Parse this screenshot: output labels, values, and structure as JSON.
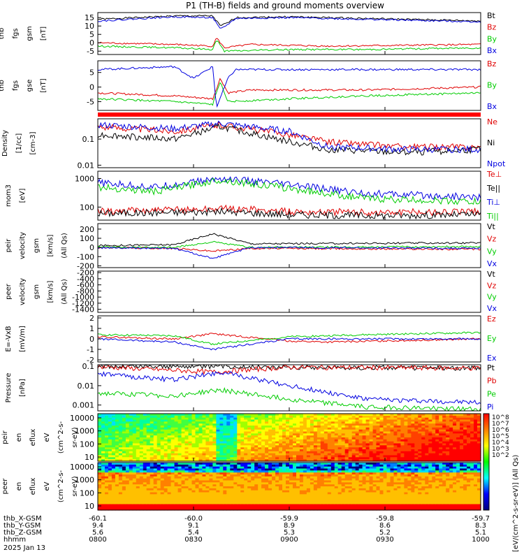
{
  "title": "P1 (TH-B) fields and ground moments overview",
  "colors": {
    "black": "#000000",
    "red": "#e00000",
    "green": "#00cc00",
    "blue": "#0000e0"
  },
  "chart_data": [
    {
      "type": "line",
      "id": "p1",
      "ylabel": [
        "thb",
        "fgs",
        "gsm",
        "[nT]"
      ],
      "yticks": [
        15,
        10,
        5,
        0,
        -5
      ],
      "ylim": [
        -7,
        18
      ],
      "series": [
        {
          "name": "Bt",
          "color": "black",
          "points": [
            [
              0,
              14
            ],
            [
              0.2,
              16
            ],
            [
              0.3,
              16
            ],
            [
              0.32,
              10
            ],
            [
              0.34,
              12
            ],
            [
              0.36,
              15
            ],
            [
              0.5,
              15.5
            ],
            [
              1,
              13
            ]
          ]
        },
        {
          "name": "Bz",
          "color": "red",
          "points": [
            [
              0,
              0
            ],
            [
              0.2,
              -1
            ],
            [
              0.3,
              -2
            ],
            [
              0.31,
              3
            ],
            [
              0.33,
              -3
            ],
            [
              0.4,
              -1
            ],
            [
              0.6,
              -2
            ],
            [
              1,
              -1
            ]
          ]
        },
        {
          "name": "By",
          "color": "green",
          "points": [
            [
              0,
              -2
            ],
            [
              0.2,
              -3
            ],
            [
              0.3,
              -4
            ],
            [
              0.31,
              2
            ],
            [
              0.33,
              -5
            ],
            [
              0.5,
              -4
            ],
            [
              0.7,
              -4
            ],
            [
              1,
              -3
            ]
          ]
        },
        {
          "name": "Bx",
          "color": "blue",
          "points": [
            [
              0,
              13
            ],
            [
              0.2,
              15.5
            ],
            [
              0.3,
              15
            ],
            [
              0.32,
              8
            ],
            [
              0.34,
              11
            ],
            [
              0.36,
              14.5
            ],
            [
              0.5,
              15
            ],
            [
              1,
              12.5
            ]
          ]
        }
      ]
    },
    {
      "type": "line",
      "id": "p2",
      "ylabel": [
        "thb",
        "fgs",
        "gse",
        "[nT]"
      ],
      "yticks": [
        5,
        0,
        -5
      ],
      "ylim": [
        -8,
        9
      ],
      "series": [
        {
          "name": "Bz",
          "color": "red",
          "points": [
            [
              0,
              -2
            ],
            [
              0.2,
              -3
            ],
            [
              0.3,
              -4
            ],
            [
              0.32,
              3
            ],
            [
              0.34,
              -2
            ],
            [
              0.4,
              -1
            ],
            [
              0.7,
              -1
            ],
            [
              1,
              0
            ]
          ]
        },
        {
          "name": "By",
          "color": "green",
          "points": [
            [
              0,
              -4
            ],
            [
              0.2,
              -5
            ],
            [
              0.3,
              -6
            ],
            [
              0.32,
              2
            ],
            [
              0.34,
              -5
            ],
            [
              0.5,
              -4
            ],
            [
              0.7,
              -3
            ],
            [
              1,
              -2
            ]
          ]
        },
        {
          "name": "Bx",
          "color": "blue",
          "points": [
            [
              0,
              6
            ],
            [
              0.2,
              7
            ],
            [
              0.25,
              3
            ],
            [
              0.3,
              7
            ],
            [
              0.31,
              -7
            ],
            [
              0.34,
              3
            ],
            [
              0.36,
              6
            ],
            [
              0.5,
              6
            ],
            [
              1,
              6
            ]
          ]
        }
      ]
    },
    {
      "type": "line",
      "id": "p3",
      "log": true,
      "ylabel": [
        "Density",
        "[1/cc]",
        "[cm-3]"
      ],
      "yticks": [
        0.1,
        0.01
      ],
      "ylim": [
        0.008,
        0.6
      ],
      "series": [
        {
          "name": "Ne",
          "color": "red",
          "points": [
            [
              0,
              0.3
            ],
            [
              0.2,
              0.2
            ],
            [
              0.32,
              0.35
            ],
            [
              0.5,
              0.15
            ],
            [
              0.6,
              0.08
            ],
            [
              0.8,
              0.05
            ],
            [
              1,
              0.05
            ]
          ]
        },
        {
          "name": "Ni",
          "color": "black",
          "points": [
            [
              0,
              0.15
            ],
            [
              0.2,
              0.1
            ],
            [
              0.32,
              0.3
            ],
            [
              0.5,
              0.08
            ],
            [
              0.6,
              0.04
            ],
            [
              0.8,
              0.03
            ],
            [
              1,
              0.04
            ]
          ]
        },
        {
          "name": "Npot",
          "color": "blue",
          "points": [
            [
              0,
              0.35
            ],
            [
              0.2,
              0.25
            ],
            [
              0.32,
              0.4
            ],
            [
              0.5,
              0.2
            ],
            [
              0.6,
              0.05
            ],
            [
              0.8,
              0.04
            ],
            [
              1,
              0.04
            ]
          ]
        }
      ]
    },
    {
      "type": "line",
      "id": "p4",
      "log": true,
      "ylabel": [
        "mom3",
        "[eV]"
      ],
      "yticks": [
        1000,
        100
      ],
      "ylim": [
        35,
        1800
      ],
      "series": [
        {
          "name": "Te⊥",
          "color": "red",
          "points": [
            [
              0,
              70
            ],
            [
              0.2,
              80
            ],
            [
              0.32,
              90
            ],
            [
              0.5,
              70
            ],
            [
              0.7,
              65
            ],
            [
              1,
              70
            ]
          ]
        },
        {
          "name": "Te||",
          "color": "black",
          "points": [
            [
              0,
              60
            ],
            [
              0.2,
              65
            ],
            [
              0.32,
              70
            ],
            [
              0.5,
              55
            ],
            [
              0.7,
              50
            ],
            [
              1,
              55
            ]
          ]
        },
        {
          "name": "Ti⊥",
          "color": "blue",
          "points": [
            [
              0,
              700
            ],
            [
              0.15,
              500
            ],
            [
              0.32,
              1000
            ],
            [
              0.5,
              600
            ],
            [
              0.7,
              300
            ],
            [
              1,
              220
            ]
          ]
        },
        {
          "name": "Ti||",
          "color": "green",
          "points": [
            [
              0,
              500
            ],
            [
              0.15,
              350
            ],
            [
              0.32,
              900
            ],
            [
              0.5,
              450
            ],
            [
              0.7,
              200
            ],
            [
              1,
              150
            ]
          ]
        }
      ]
    },
    {
      "type": "line",
      "id": "p5",
      "ylabel": [
        "thb",
        "peir",
        "velocity",
        "gsm",
        "[km/s]",
        "(All Qs)"
      ],
      "yticks": [
        200,
        100,
        0,
        -100,
        -200
      ],
      "ylim": [
        -220,
        260
      ],
      "series": [
        {
          "name": "Vt",
          "color": "black",
          "points": [
            [
              0,
              20
            ],
            [
              0.2,
              30
            ],
            [
              0.3,
              150
            ],
            [
              0.4,
              40
            ],
            [
              1,
              50
            ]
          ]
        },
        {
          "name": "Vz",
          "color": "red",
          "points": [
            [
              0,
              0
            ],
            [
              0.2,
              -10
            ],
            [
              0.3,
              -40
            ],
            [
              0.4,
              -10
            ],
            [
              1,
              -20
            ]
          ]
        },
        {
          "name": "Vy",
          "color": "green",
          "points": [
            [
              0,
              5
            ],
            [
              0.2,
              0
            ],
            [
              0.3,
              60
            ],
            [
              0.4,
              0
            ],
            [
              1,
              10
            ]
          ]
        },
        {
          "name": "Vx",
          "color": "blue",
          "points": [
            [
              0,
              -5
            ],
            [
              0.2,
              -10
            ],
            [
              0.3,
              -120
            ],
            [
              0.4,
              0
            ],
            [
              1,
              -10
            ]
          ]
        }
      ]
    },
    {
      "type": "line",
      "id": "p6",
      "ylabel": [
        "thb",
        "peer",
        "velocity",
        "gsm",
        "[km/s]",
        "(All Qs)"
      ],
      "yticks": [
        -200,
        -400,
        -600,
        -800,
        -1000,
        -1200,
        -1400
      ],
      "ylim": [
        -1500,
        -150
      ],
      "series": [
        {
          "name": "Vt",
          "color": "black",
          "points": []
        },
        {
          "name": "Vz",
          "color": "red",
          "points": []
        },
        {
          "name": "Vy",
          "color": "green",
          "points": []
        },
        {
          "name": "Vx",
          "color": "blue",
          "points": []
        }
      ]
    },
    {
      "type": "line",
      "id": "p7",
      "ylabel": [
        "E=-VxB",
        "[mV/m]"
      ],
      "yticks": [
        2,
        1,
        0,
        -1,
        -2
      ],
      "ylim": [
        -2.2,
        2.2
      ],
      "series": [
        {
          "name": "Ez",
          "color": "red",
          "points": [
            [
              0,
              0.2
            ],
            [
              0.2,
              0
            ],
            [
              0.3,
              0.5
            ],
            [
              0.5,
              -0.2
            ],
            [
              0.6,
              -0.3
            ],
            [
              1,
              0
            ]
          ]
        },
        {
          "name": "Ey",
          "color": "green",
          "points": [
            [
              0,
              0.4
            ],
            [
              0.2,
              0.3
            ],
            [
              0.3,
              -0.5
            ],
            [
              0.5,
              0.2
            ],
            [
              0.7,
              0.4
            ],
            [
              1,
              0.6
            ]
          ]
        },
        {
          "name": "Ex",
          "color": "blue",
          "points": [
            [
              0,
              0
            ],
            [
              0.2,
              -0.3
            ],
            [
              0.3,
              -1
            ],
            [
              0.5,
              0
            ],
            [
              1,
              0
            ]
          ]
        }
      ]
    },
    {
      "type": "line",
      "id": "p8",
      "log": true,
      "ylabel": [
        "Pressure",
        "[nPa]"
      ],
      "yticks": [
        0.1,
        0.01,
        0.001
      ],
      "ylim": [
        0.0005,
        0.12
      ],
      "series": [
        {
          "name": "Pt",
          "color": "black",
          "points": [
            [
              0,
              0.1
            ],
            [
              0.3,
              0.1
            ],
            [
              0.5,
              0.09
            ],
            [
              1,
              0.08
            ]
          ]
        },
        {
          "name": "Pb",
          "color": "red",
          "points": [
            [
              0,
              0.095
            ],
            [
              0.3,
              0.05
            ],
            [
              0.5,
              0.09
            ],
            [
              1,
              0.08
            ]
          ]
        },
        {
          "name": "Pe",
          "color": "green",
          "points": [
            [
              0,
              0.004
            ],
            [
              0.2,
              0.003
            ],
            [
              0.32,
              0.006
            ],
            [
              0.5,
              0.002
            ],
            [
              0.7,
              0.0008
            ],
            [
              1,
              0.0006
            ]
          ]
        },
        {
          "name": "Pi",
          "color": "blue",
          "points": [
            [
              0,
              0.04
            ],
            [
              0.2,
              0.02
            ],
            [
              0.32,
              0.05
            ],
            [
              0.5,
              0.01
            ],
            [
              0.7,
              0.002
            ],
            [
              1,
              0.0013
            ]
          ]
        }
      ]
    },
    {
      "type": "heatmap",
      "id": "p9",
      "ylabel": [
        "thb",
        "peir",
        "en",
        "eflux",
        "eV",
        "(cm^2-s-",
        "sr-eV)"
      ],
      "yticks": [
        10000,
        1000,
        100,
        10
      ]
    },
    {
      "type": "heatmap",
      "id": "p10",
      "ylabel": [
        "thb",
        "peer",
        "en",
        "eflux",
        "eV",
        "(cm^2-s-",
        "sr-eV)"
      ],
      "yticks": [
        10000,
        1000,
        100,
        10
      ]
    }
  ],
  "colorbar": {
    "label": "[eV/(cm^2-s-sr-eV)] (All Qs)",
    "ticks_top": [
      "10^8",
      "10^7",
      "10^6",
      "10^5",
      "10^4",
      "10^3",
      "10^2"
    ],
    "ticks_bot": [
      "10^8",
      "10^7",
      "10^6",
      "10^5",
      "10^4",
      "10^3",
      "10^2"
    ]
  },
  "xaxis": {
    "rows": [
      {
        "label": "thb_X-GSM",
        "values": [
          "-60.1",
          "-60.0",
          "-59.9",
          "-59.8",
          "-59.7"
        ]
      },
      {
        "label": "thb_Y-GSM",
        "values": [
          "9.4",
          "9.1",
          "8.9",
          "8.6",
          "8.3"
        ]
      },
      {
        "label": "thb_Z-GSM",
        "values": [
          "5.6",
          "5.4",
          "5.3",
          "5.2",
          "5.1"
        ]
      },
      {
        "label": "hhmm",
        "values": [
          "0800",
          "0830",
          "0900",
          "0930",
          "1000"
        ]
      }
    ],
    "date": "2025 Jan 13"
  }
}
